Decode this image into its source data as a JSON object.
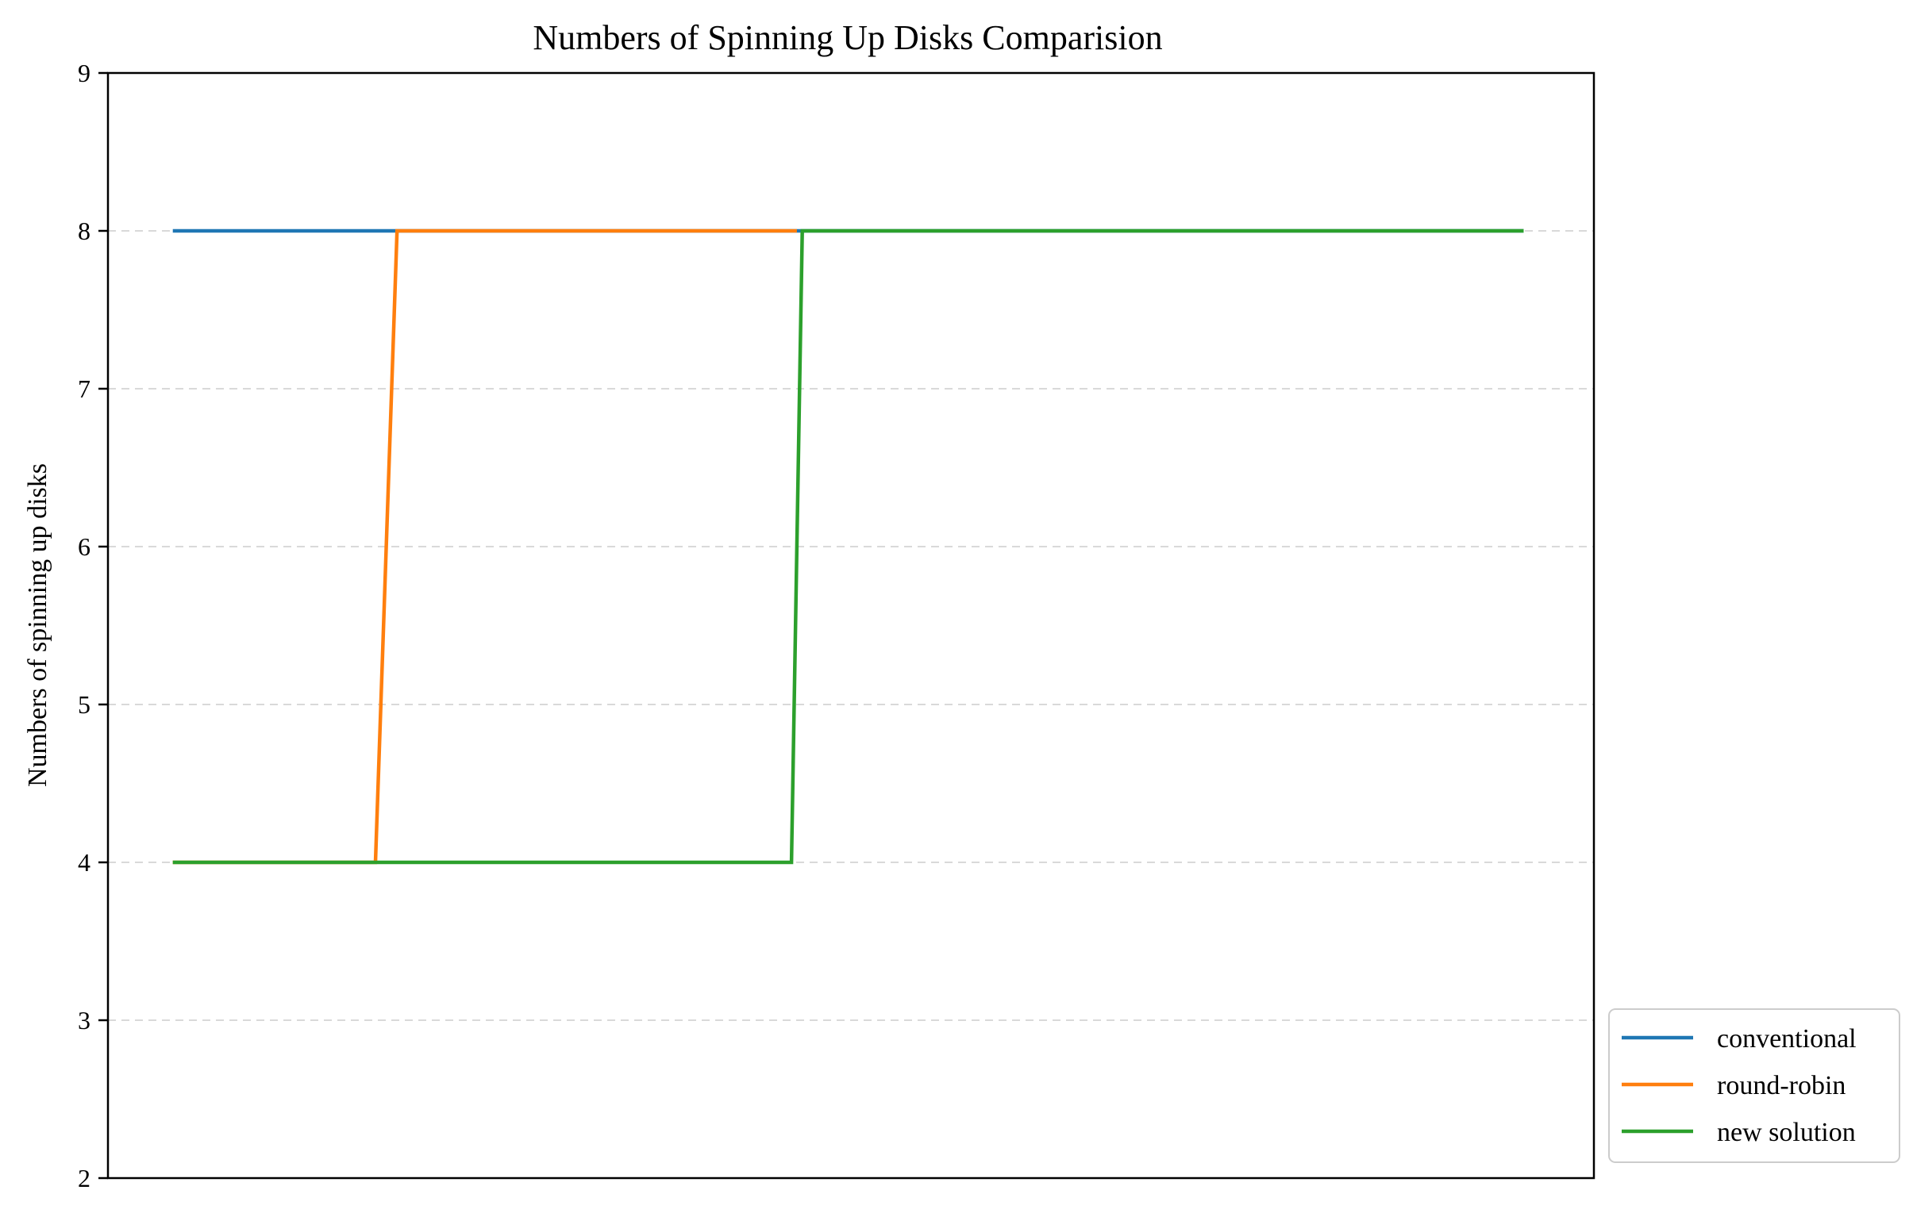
{
  "chart_data": {
    "type": "line",
    "title": "Numbers of Spinning Up Disks Comparision",
    "xlabel": "",
    "ylabel": "Numbers of spinning up disks",
    "ylim": [
      2,
      9
    ],
    "xlim": [
      -2.4,
      52.6
    ],
    "yticks": [
      "2",
      "3",
      "4",
      "5",
      "6",
      "7",
      "8",
      "9"
    ],
    "grid": "y-dashed",
    "legend_position": "lower-right-outside",
    "series": [
      {
        "name": "conventional",
        "color": "#1f77b4",
        "x": [
          0,
          50
        ],
        "y": [
          8,
          8
        ]
      },
      {
        "name": "round-robin",
        "color": "#ff7f0e",
        "x": [
          0,
          7.5,
          8.3,
          23.1
        ],
        "y": [
          4,
          4,
          8,
          8
        ]
      },
      {
        "name": "new solution",
        "color": "#2ca02c",
        "x": [
          0,
          22.9,
          23.3,
          50
        ],
        "y": [
          4,
          4,
          8,
          8
        ]
      }
    ]
  }
}
